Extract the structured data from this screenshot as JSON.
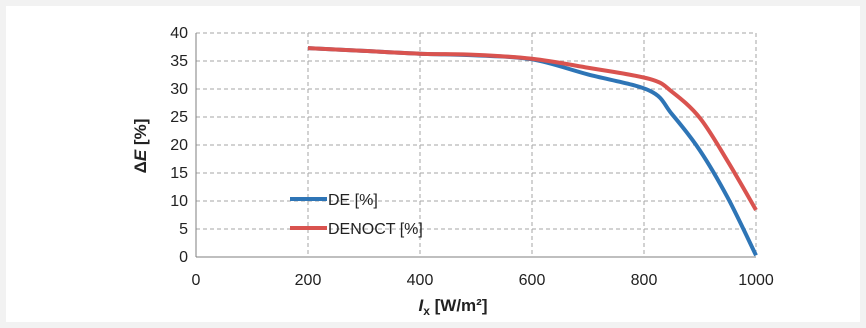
{
  "chart_data": {
    "type": "line",
    "xlabel": "I_x [W/m²]",
    "xlabel_main": "I",
    "xlabel_sub": "x",
    "xlabel_unit": " [W/m²]",
    "ylabel": "ΔE [%]",
    "ylabel_delta": "Δ",
    "ylabel_var": "E",
    "ylabel_unit": " [%]",
    "xlim": [
      0,
      1000
    ],
    "ylim": [
      0,
      40
    ],
    "x_ticks": [
      0,
      200,
      400,
      600,
      800,
      1000
    ],
    "y_ticks": [
      0,
      5,
      10,
      15,
      20,
      25,
      30,
      35,
      40
    ],
    "x_tick_labels": [
      "0",
      "200",
      "400",
      "600",
      "800",
      "1000"
    ],
    "y_tick_labels": [
      "0",
      "5",
      "10",
      "15",
      "20",
      "25",
      "30",
      "35",
      "40"
    ],
    "grid": "dashed",
    "legend_position": "lower-left",
    "series": [
      {
        "name": "DE [%]",
        "color": "#2e75b6",
        "x": [
          200,
          300,
          400,
          500,
          600,
          700,
          810,
          850,
          900,
          950,
          1000
        ],
        "y": [
          37.3,
          36.8,
          36.3,
          36.0,
          35.3,
          32.6,
          29.7,
          25.5,
          19.0,
          10.5,
          0.3
        ]
      },
      {
        "name": "DENOCT [%]",
        "color": "#d9534f",
        "x": [
          200,
          300,
          400,
          500,
          600,
          700,
          810,
          850,
          900,
          950,
          1000
        ],
        "y": [
          37.3,
          36.8,
          36.3,
          36.1,
          35.4,
          33.8,
          31.8,
          29.5,
          24.8,
          17.0,
          8.4
        ]
      }
    ]
  }
}
